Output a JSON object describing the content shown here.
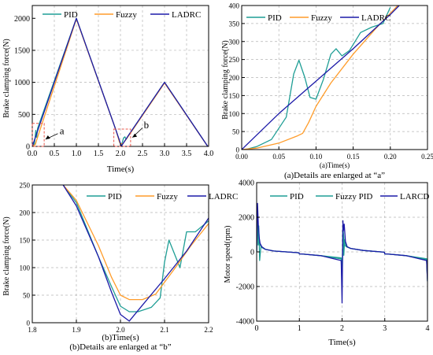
{
  "colors": {
    "PID": "#1f9e95",
    "Fuzzy": "#ff9c2a",
    "LADRC": "#1c1aa8",
    "grid": "#b5b5b5",
    "box": "#e8564a"
  },
  "chart_data": [
    {
      "type": "line",
      "ylabel": "Brake clamping force(N)",
      "xlabel": "Time(s)",
      "caption": "",
      "xlim": [
        0,
        4
      ],
      "ylim": [
        0,
        2200
      ],
      "xticks": [
        0,
        0.5,
        1,
        1.5,
        2,
        2.5,
        3,
        3.5,
        4
      ],
      "xtick_labels": [
        "0.0",
        "0.5",
        "1.0",
        "1.5",
        "2.0",
        "2.5",
        "3.0",
        "3.5",
        "4.0"
      ],
      "yticks": [
        0,
        500,
        1000,
        1500,
        2000
      ],
      "ytick_labels": [
        "0",
        "500",
        "1000",
        "1500",
        "2000"
      ],
      "grid": true,
      "legend": "top",
      "series": [
        {
          "name": "PID",
          "x": [
            0,
            0.05,
            0.08,
            0.1,
            0.12,
            1.0,
            1.9,
            1.98,
            2.02,
            2.07,
            2.1,
            2.13,
            2.18,
            3.0,
            3.98
          ],
          "y": [
            0,
            40,
            250,
            140,
            280,
            2000,
            250,
            80,
            10,
            130,
            150,
            110,
            170,
            1000,
            0
          ]
        },
        {
          "name": "Fuzzy",
          "x": [
            0,
            0.07,
            0.1,
            1.0,
            1.9,
            1.98,
            2.02,
            2.06,
            2.2,
            3.0,
            3.98
          ],
          "y": [
            0,
            30,
            100,
            1990,
            250,
            60,
            40,
            45,
            180,
            990,
            0
          ]
        },
        {
          "name": "LADRC",
          "x": [
            0,
            1.0,
            1.9,
            2.02,
            2.2,
            3.0,
            3.98
          ],
          "y": [
            0,
            2000,
            250,
            5,
            190,
            1000,
            0
          ]
        }
      ],
      "annotations": [
        {
          "text": "a"
        },
        {
          "text": "b"
        }
      ]
    },
    {
      "type": "line",
      "ylabel": "Brake clamping force(N)",
      "xlabel": "(a)Time(s)",
      "caption": "(a)Details are enlarged at “a”",
      "xlim": [
        0,
        0.25
      ],
      "ylim": [
        0,
        400
      ],
      "xticks": [
        0,
        0.05,
        0.1,
        0.15,
        0.2,
        0.25
      ],
      "xtick_labels": [
        "0.00",
        "0.05",
        "0.10",
        "0.15",
        "0.20",
        "0.25"
      ],
      "yticks": [
        0,
        50,
        100,
        150,
        200,
        250,
        300,
        350,
        400
      ],
      "ytick_labels": [
        "0",
        "50",
        "100",
        "150",
        "200",
        "250",
        "300",
        "350",
        "400"
      ],
      "grid": true,
      "legend": "top",
      "series": [
        {
          "name": "PID",
          "x": [
            0.005,
            0.02,
            0.04,
            0.06,
            0.07,
            0.077,
            0.085,
            0.092,
            0.1,
            0.11,
            0.12,
            0.127,
            0.135,
            0.145,
            0.16,
            0.175,
            0.19,
            0.2
          ],
          "y": [
            0,
            8,
            28,
            90,
            210,
            248,
            200,
            145,
            140,
            195,
            265,
            280,
            260,
            275,
            325,
            340,
            350,
            395
          ]
        },
        {
          "name": "Fuzzy",
          "x": [
            0.0,
            0.02,
            0.05,
            0.075,
            0.082,
            0.09,
            0.1,
            0.12,
            0.15,
            0.18,
            0.21
          ],
          "y": [
            0,
            4,
            18,
            38,
            45,
            75,
            120,
            185,
            265,
            335,
            400
          ]
        },
        {
          "name": "LADRC",
          "x": [
            0.0,
            0.05,
            0.1,
            0.15,
            0.2,
            0.212
          ],
          "y": [
            0,
            100,
            190,
            280,
            375,
            400
          ]
        }
      ]
    },
    {
      "type": "line",
      "ylabel": "Brake clamping force(N)",
      "xlabel": "(b)Time(s)",
      "caption": "(b)Details are enlarged at “b”",
      "xlim": [
        1.8,
        2.2
      ],
      "ylim": [
        0,
        250
      ],
      "xticks": [
        1.8,
        1.9,
        2.0,
        2.1,
        2.2
      ],
      "xtick_labels": [
        "1.8",
        "1.9",
        "2.0",
        "2.1",
        "2.2"
      ],
      "yticks": [
        0,
        50,
        100,
        150,
        200,
        250
      ],
      "ytick_labels": [
        "0",
        "50",
        "100",
        "150",
        "200",
        "250"
      ],
      "grid": true,
      "legend": "top",
      "series": [
        {
          "name": "PID",
          "x": [
            1.87,
            1.9,
            1.95,
            1.98,
            2.0,
            2.02,
            2.04,
            2.07,
            2.09,
            2.1,
            2.11,
            2.12,
            2.135,
            2.15,
            2.17,
            2.2
          ],
          "y": [
            250,
            218,
            120,
            65,
            30,
            20,
            20,
            28,
            45,
            110,
            150,
            130,
            100,
            165,
            165,
            185
          ]
        },
        {
          "name": "Fuzzy",
          "x": [
            1.87,
            1.9,
            1.95,
            1.98,
            2.0,
            2.02,
            2.05,
            2.08,
            2.12,
            2.16,
            2.2
          ],
          "y": [
            250,
            222,
            140,
            82,
            50,
            42,
            42,
            52,
            95,
            140,
            180
          ]
        },
        {
          "name": "LADRC",
          "x": [
            1.87,
            1.9,
            1.95,
            1.98,
            2.0,
            2.02,
            2.05,
            2.1,
            2.15,
            2.2
          ],
          "y": [
            250,
            212,
            120,
            55,
            15,
            3,
            32,
            80,
            130,
            190
          ]
        }
      ]
    },
    {
      "type": "line",
      "ylabel": "Motor speed(rpm)",
      "xlabel": "Time(s)",
      "caption": "",
      "xlim": [
        0,
        4
      ],
      "ylim": [
        -4000,
        4000
      ],
      "xticks": [
        0,
        1,
        2,
        3,
        4
      ],
      "xtick_labels": [
        "0",
        "1",
        "2",
        "3",
        "4"
      ],
      "yticks": [
        -4000,
        -2000,
        0,
        2000,
        4000
      ],
      "ytick_labels": [
        "-4000",
        "-2000",
        "0",
        "2000",
        "4000"
      ],
      "grid": true,
      "legend": "top",
      "series": [
        {
          "name": "PID",
          "x": [
            0,
            0.02,
            0.04,
            0.06,
            0.08,
            0.12,
            0.2,
            0.4,
            0.99,
            1.0,
            1.01,
            1.05,
            1.5,
            1.98,
            2.0,
            2.02,
            2.04,
            2.06,
            2.1,
            2.2,
            2.5,
            2.99,
            3.0,
            3.01,
            3.05,
            3.5,
            3.98,
            4.0
          ],
          "y": [
            0,
            2000,
            1200,
            700,
            400,
            250,
            150,
            50,
            -50,
            -120,
            -120,
            -120,
            -220,
            -350,
            -1400,
            1400,
            800,
            400,
            300,
            200,
            80,
            -20,
            -120,
            -120,
            -120,
            -220,
            -400,
            -1600
          ]
        },
        {
          "name": "Fuzzy PID",
          "x": [
            0,
            0.02,
            0.035,
            0.05,
            0.07,
            0.1,
            0.2,
            0.4,
            0.99,
            1.0,
            1.01,
            1.05,
            1.5,
            1.98,
            2.0,
            2.02,
            2.04,
            2.06,
            2.1,
            2.2,
            2.5,
            2.99,
            3.0,
            3.01,
            3.05,
            3.5,
            3.98,
            4.0
          ],
          "y": [
            0,
            2600,
            400,
            1500,
            -500,
            300,
            150,
            50,
            -50,
            -120,
            -120,
            -120,
            -220,
            -400,
            -2000,
            1500,
            -200,
            700,
            300,
            200,
            80,
            -20,
            -120,
            -120,
            -120,
            -220,
            -450,
            -1700
          ]
        },
        {
          "name": "LARCD",
          "x": [
            0,
            0.02,
            0.04,
            0.06,
            0.08,
            0.12,
            0.2,
            0.4,
            0.99,
            1.0,
            1.01,
            1.05,
            1.5,
            1.98,
            2.0,
            2.02,
            2.03,
            2.05,
            2.08,
            2.12,
            2.2,
            2.5,
            2.99,
            3.0,
            3.01,
            3.05,
            3.5,
            3.98,
            4.0
          ],
          "y": [
            0,
            2800,
            1500,
            800,
            500,
            300,
            150,
            50,
            -50,
            -120,
            -120,
            -120,
            -220,
            -500,
            -2950,
            1800,
            1200,
            1600,
            600,
            300,
            200,
            80,
            -20,
            -120,
            -120,
            -120,
            -220,
            -500,
            -1700
          ]
        }
      ]
    }
  ]
}
